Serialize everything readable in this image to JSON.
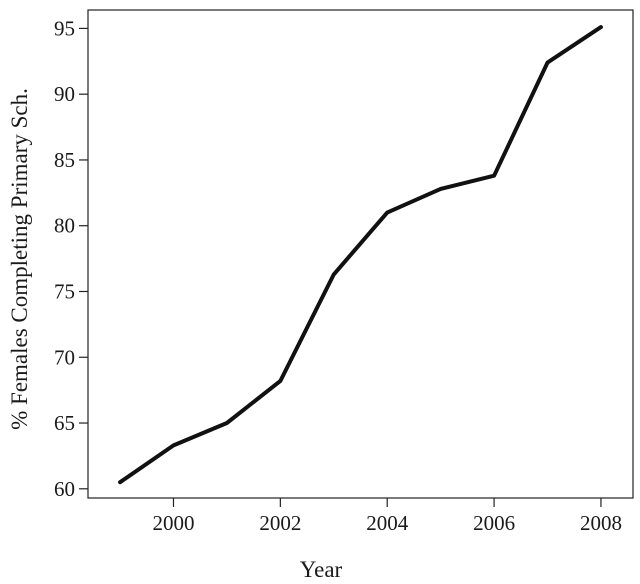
{
  "chart_data": {
    "type": "line",
    "title": "",
    "xlabel": "Year",
    "ylabel": "% Females Completing Primary Sch.",
    "xlim": [
      1998.4,
      2008.6
    ],
    "ylim": [
      59.3,
      96.4
    ],
    "x_ticks": [
      2000,
      2002,
      2004,
      2006,
      2008
    ],
    "y_ticks": [
      60,
      65,
      70,
      75,
      80,
      85,
      90,
      95
    ],
    "grid": false,
    "series": [
      {
        "x": [
          1999,
          2000,
          2001,
          2002,
          2003,
          2004,
          2005,
          2006,
          2007,
          2008
        ],
        "values": [
          60.5,
          63.3,
          65.0,
          68.2,
          76.3,
          81.0,
          82.8,
          83.8,
          92.4,
          95.1
        ]
      }
    ],
    "colors": {
      "line": "#111111",
      "axis": "#222222"
    }
  }
}
